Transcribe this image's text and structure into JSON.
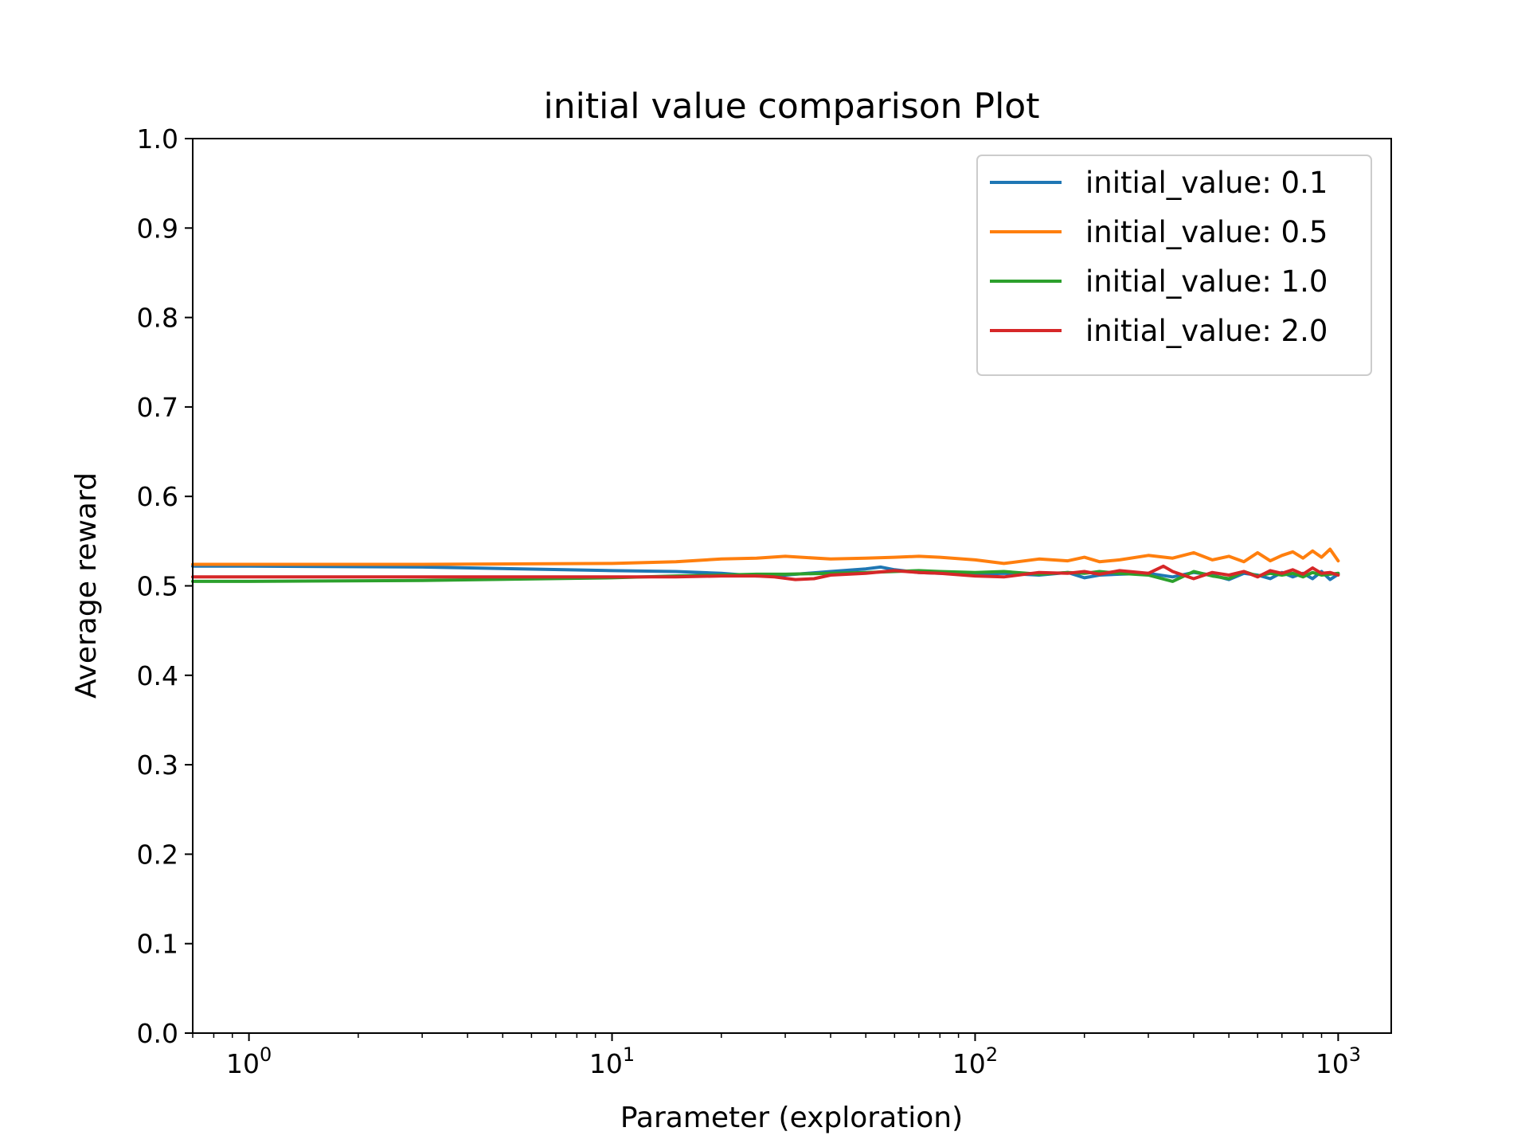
{
  "chart_data": {
    "type": "line",
    "title": "initial value comparison Plot",
    "xlabel": "Parameter (exploration)",
    "ylabel": "Average reward",
    "xscale": "log",
    "xlim": [
      0.7,
      1400
    ],
    "ylim": [
      0.0,
      1.0
    ],
    "grid": false,
    "legend_position": "top-right",
    "x_ticks": [
      {
        "value": 1,
        "base": "10",
        "exp": "0"
      },
      {
        "value": 10,
        "base": "10",
        "exp": "1"
      },
      {
        "value": 100,
        "base": "10",
        "exp": "2"
      },
      {
        "value": 1000,
        "base": "10",
        "exp": "3"
      }
    ],
    "y_ticks": [
      {
        "value": 0.0,
        "label": "0.0"
      },
      {
        "value": 0.1,
        "label": "0.1"
      },
      {
        "value": 0.2,
        "label": "0.2"
      },
      {
        "value": 0.3,
        "label": "0.3"
      },
      {
        "value": 0.4,
        "label": "0.4"
      },
      {
        "value": 0.5,
        "label": "0.5"
      },
      {
        "value": 0.6,
        "label": "0.6"
      },
      {
        "value": 0.7,
        "label": "0.7"
      },
      {
        "value": 0.8,
        "label": "0.8"
      },
      {
        "value": 0.9,
        "label": "0.9"
      },
      {
        "value": 1.0,
        "label": "1.0"
      }
    ],
    "series": [
      {
        "name": "initial_value: 0.1",
        "color": "#1f77b4",
        "x": [
          0.7,
          1,
          3,
          10,
          15,
          20,
          25,
          30,
          40,
          50,
          55,
          60,
          70,
          80,
          100,
          120,
          150,
          180,
          200,
          220,
          250,
          300,
          350,
          400,
          450,
          500,
          550,
          600,
          650,
          700,
          750,
          800,
          850,
          900,
          950,
          1000
        ],
        "y": [
          0.522,
          0.522,
          0.521,
          0.517,
          0.516,
          0.514,
          0.511,
          0.512,
          0.516,
          0.519,
          0.521,
          0.518,
          0.515,
          0.514,
          0.513,
          0.514,
          0.512,
          0.515,
          0.509,
          0.512,
          0.513,
          0.514,
          0.51,
          0.515,
          0.512,
          0.507,
          0.514,
          0.512,
          0.508,
          0.515,
          0.51,
          0.514,
          0.508,
          0.516,
          0.507,
          0.513
        ]
      },
      {
        "name": "initial_value: 0.5",
        "color": "#ff7f0e",
        "x": [
          0.7,
          1,
          3,
          10,
          15,
          20,
          25,
          30,
          40,
          50,
          60,
          70,
          80,
          100,
          120,
          150,
          180,
          200,
          220,
          250,
          300,
          350,
          400,
          450,
          500,
          550,
          600,
          650,
          700,
          750,
          800,
          850,
          900,
          950,
          1000
        ],
        "y": [
          0.524,
          0.524,
          0.524,
          0.525,
          0.527,
          0.53,
          0.531,
          0.533,
          0.53,
          0.531,
          0.532,
          0.533,
          0.532,
          0.529,
          0.525,
          0.53,
          0.528,
          0.532,
          0.527,
          0.529,
          0.534,
          0.531,
          0.537,
          0.529,
          0.533,
          0.527,
          0.537,
          0.528,
          0.534,
          0.538,
          0.531,
          0.539,
          0.532,
          0.541,
          0.528
        ]
      },
      {
        "name": "initial_value: 1.0",
        "color": "#2ca02c",
        "x": [
          0.7,
          1,
          3,
          10,
          15,
          20,
          25,
          30,
          40,
          50,
          60,
          70,
          80,
          100,
          120,
          150,
          180,
          200,
          220,
          250,
          300,
          350,
          400,
          450,
          500,
          550,
          600,
          650,
          700,
          750,
          800,
          850,
          900,
          950,
          1000
        ],
        "y": [
          0.505,
          0.505,
          0.506,
          0.509,
          0.511,
          0.512,
          0.513,
          0.513,
          0.514,
          0.515,
          0.516,
          0.517,
          0.516,
          0.515,
          0.516,
          0.513,
          0.515,
          0.514,
          0.516,
          0.514,
          0.512,
          0.505,
          0.516,
          0.511,
          0.508,
          0.516,
          0.511,
          0.514,
          0.512,
          0.514,
          0.51,
          0.515,
          0.512,
          0.513,
          0.514
        ]
      },
      {
        "name": "initial_value: 2.0",
        "color": "#d62728",
        "x": [
          0.7,
          1,
          3,
          10,
          15,
          20,
          25,
          28,
          32,
          36,
          40,
          50,
          60,
          70,
          80,
          100,
          120,
          150,
          180,
          200,
          220,
          250,
          300,
          330,
          350,
          400,
          450,
          500,
          550,
          600,
          650,
          700,
          750,
          800,
          850,
          900,
          950,
          1000
        ],
        "y": [
          0.51,
          0.51,
          0.51,
          0.51,
          0.51,
          0.511,
          0.511,
          0.51,
          0.507,
          0.508,
          0.512,
          0.514,
          0.517,
          0.515,
          0.514,
          0.511,
          0.51,
          0.515,
          0.514,
          0.516,
          0.513,
          0.517,
          0.514,
          0.522,
          0.516,
          0.508,
          0.515,
          0.512,
          0.516,
          0.51,
          0.517,
          0.514,
          0.518,
          0.513,
          0.52,
          0.514,
          0.515,
          0.512
        ]
      }
    ]
  }
}
